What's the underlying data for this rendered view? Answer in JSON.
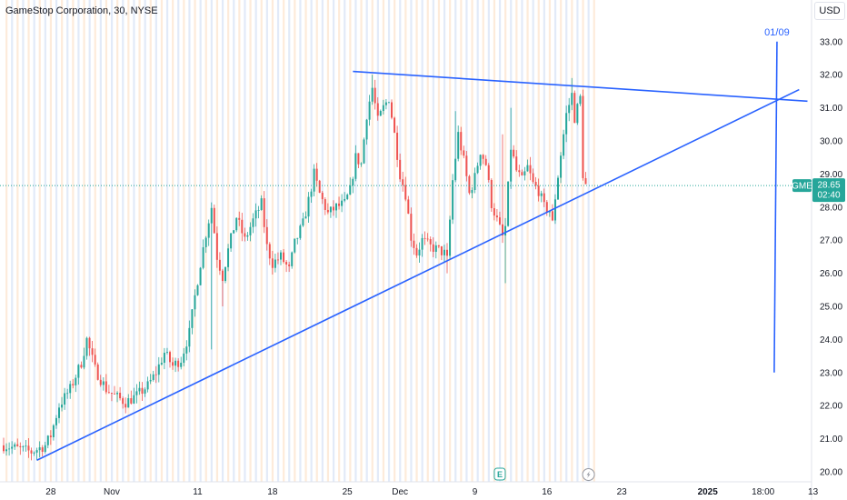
{
  "header": {
    "title": "GameStop Corporation, 30, NYSE",
    "currency_label": "USD"
  },
  "colors": {
    "up": "#26a69a",
    "down": "#ef5350",
    "trendline": "#2962ff",
    "price_line": "#26a69a",
    "badge": "#26a69a",
    "session_stripe_a": "#fde7d3",
    "session_stripe_b": "#dde6f7"
  },
  "chart_data": {
    "type": "candlestick",
    "symbol": "GME",
    "interval": "30",
    "ylim": [
      19.7,
      33.3
    ],
    "yticks": [
      "20.00",
      "21.00",
      "22.00",
      "23.00",
      "24.00",
      "25.00",
      "26.00",
      "27.00",
      "28.00",
      "29.00",
      "30.00",
      "31.00",
      "32.00",
      "33.00"
    ],
    "last_price": 28.65,
    "last_price_label": "28.65",
    "countdown": "02:40",
    "x_labels": [
      {
        "label": "28",
        "idx": 17,
        "bold": false
      },
      {
        "label": "Nov",
        "idx": 39,
        "bold": false
      },
      {
        "label": "11",
        "idx": 70,
        "bold": false
      },
      {
        "label": "18",
        "idx": 97,
        "bold": false
      },
      {
        "label": "25",
        "idx": 124,
        "bold": false
      },
      {
        "label": "Dec",
        "idx": 143,
        "bold": false
      },
      {
        "label": "9",
        "idx": 170,
        "bold": false
      },
      {
        "label": "16",
        "idx": 196,
        "bold": false
      },
      {
        "label": "23",
        "idx": 223,
        "bold": false
      },
      {
        "label": "2025",
        "idx": 254,
        "bold": true
      },
      {
        "label": "18:00",
        "idx": 274,
        "bold": false
      },
      {
        "label": "13",
        "idx": 292,
        "bold": false
      }
    ],
    "price_path": [
      [
        0,
        20.8
      ],
      [
        5,
        20.7
      ],
      [
        10,
        20.6
      ],
      [
        15,
        20.8
      ],
      [
        17,
        21.1
      ],
      [
        20,
        22.0
      ],
      [
        24,
        22.5
      ],
      [
        28,
        23.3
      ],
      [
        30,
        24.0
      ],
      [
        33,
        23.1
      ],
      [
        37,
        22.5
      ],
      [
        40,
        22.3
      ],
      [
        44,
        22.1
      ],
      [
        48,
        22.3
      ],
      [
        52,
        22.6
      ],
      [
        55,
        23.0
      ],
      [
        58,
        23.6
      ],
      [
        61,
        23.2
      ],
      [
        64,
        23.4
      ],
      [
        67,
        24.2
      ],
      [
        69,
        25.3
      ],
      [
        71,
        26.3
      ],
      [
        73,
        27.2
      ],
      [
        75,
        28.0
      ],
      [
        77,
        26.5
      ],
      [
        79,
        25.9
      ],
      [
        81,
        26.7
      ],
      [
        84,
        27.7
      ],
      [
        87,
        27.0
      ],
      [
        90,
        27.6
      ],
      [
        93,
        28.1
      ],
      [
        95,
        26.8
      ],
      [
        97,
        26.3
      ],
      [
        100,
        26.5
      ],
      [
        103,
        26.1
      ],
      [
        105,
        26.9
      ],
      [
        108,
        27.5
      ],
      [
        110,
        28.2
      ],
      [
        112,
        29.0
      ],
      [
        114,
        28.4
      ],
      [
        117,
        27.8
      ],
      [
        120,
        28.0
      ],
      [
        123,
        28.1
      ],
      [
        125,
        28.5
      ],
      [
        127,
        29.5
      ],
      [
        129,
        29.3
      ],
      [
        131,
        30.8
      ],
      [
        133,
        31.6
      ],
      [
        135,
        30.6
      ],
      [
        137,
        31.0
      ],
      [
        139,
        31.3
      ],
      [
        141,
        30.2
      ],
      [
        143,
        29.0
      ],
      [
        145,
        28.4
      ],
      [
        147,
        27.1
      ],
      [
        149,
        26.6
      ],
      [
        151,
        27.0
      ],
      [
        154,
        26.8
      ],
      [
        157,
        26.7
      ],
      [
        159,
        26.6
      ],
      [
        160,
        26.4
      ],
      [
        162,
        28.8
      ],
      [
        164,
        30.2
      ],
      [
        166,
        29.4
      ],
      [
        168,
        28.4
      ],
      [
        170,
        28.9
      ],
      [
        172,
        29.7
      ],
      [
        174,
        29.3
      ],
      [
        176,
        28.1
      ],
      [
        178,
        27.6
      ],
      [
        180,
        27.1
      ],
      [
        181,
        27.4
      ],
      [
        183,
        29.8
      ],
      [
        185,
        29.1
      ],
      [
        187,
        28.8
      ],
      [
        189,
        29.2
      ],
      [
        191,
        28.7
      ],
      [
        193,
        28.5
      ],
      [
        195,
        28.0
      ],
      [
        197,
        27.9
      ],
      [
        198,
        27.5
      ],
      [
        199,
        28.3
      ],
      [
        201,
        29.6
      ],
      [
        203,
        30.8
      ],
      [
        205,
        31.4
      ],
      [
        206,
        30.7
      ],
      [
        208,
        31.3
      ],
      [
        209,
        29.0
      ],
      [
        210,
        28.65
      ]
    ],
    "spikes": [
      {
        "idx": 75,
        "low": 23.7
      },
      {
        "idx": 79,
        "low": 25.0
      },
      {
        "idx": 160,
        "low": 26.0
      },
      {
        "idx": 163,
        "high": 30.9
      },
      {
        "idx": 181,
        "low": 25.7
      },
      {
        "idx": 183,
        "high": 31.0
      },
      {
        "idx": 180,
        "high": 30.2
      },
      {
        "idx": 133,
        "high": 32.0
      },
      {
        "idx": 205,
        "high": 31.9
      }
    ],
    "trendlines": [
      {
        "name": "upper-resistance",
        "points": [
          [
            126,
            32.1
          ],
          [
            290,
            31.2
          ]
        ]
      },
      {
        "name": "lower-support",
        "points": [
          [
            12,
            20.35
          ],
          [
            287,
            31.55
          ]
        ]
      },
      {
        "name": "vertical-marker",
        "points": [
          [
            279,
            33.0
          ],
          [
            278,
            23.0
          ]
        ]
      }
    ],
    "annotation": {
      "text": "01/09",
      "idx": 279,
      "y": 33.3
    },
    "event_markers": [
      {
        "name": "earnings-marker",
        "glyph": "E",
        "idx": 179
      },
      {
        "name": "dividend-marker",
        "glyph": "⚡",
        "idx": 211
      }
    ]
  }
}
